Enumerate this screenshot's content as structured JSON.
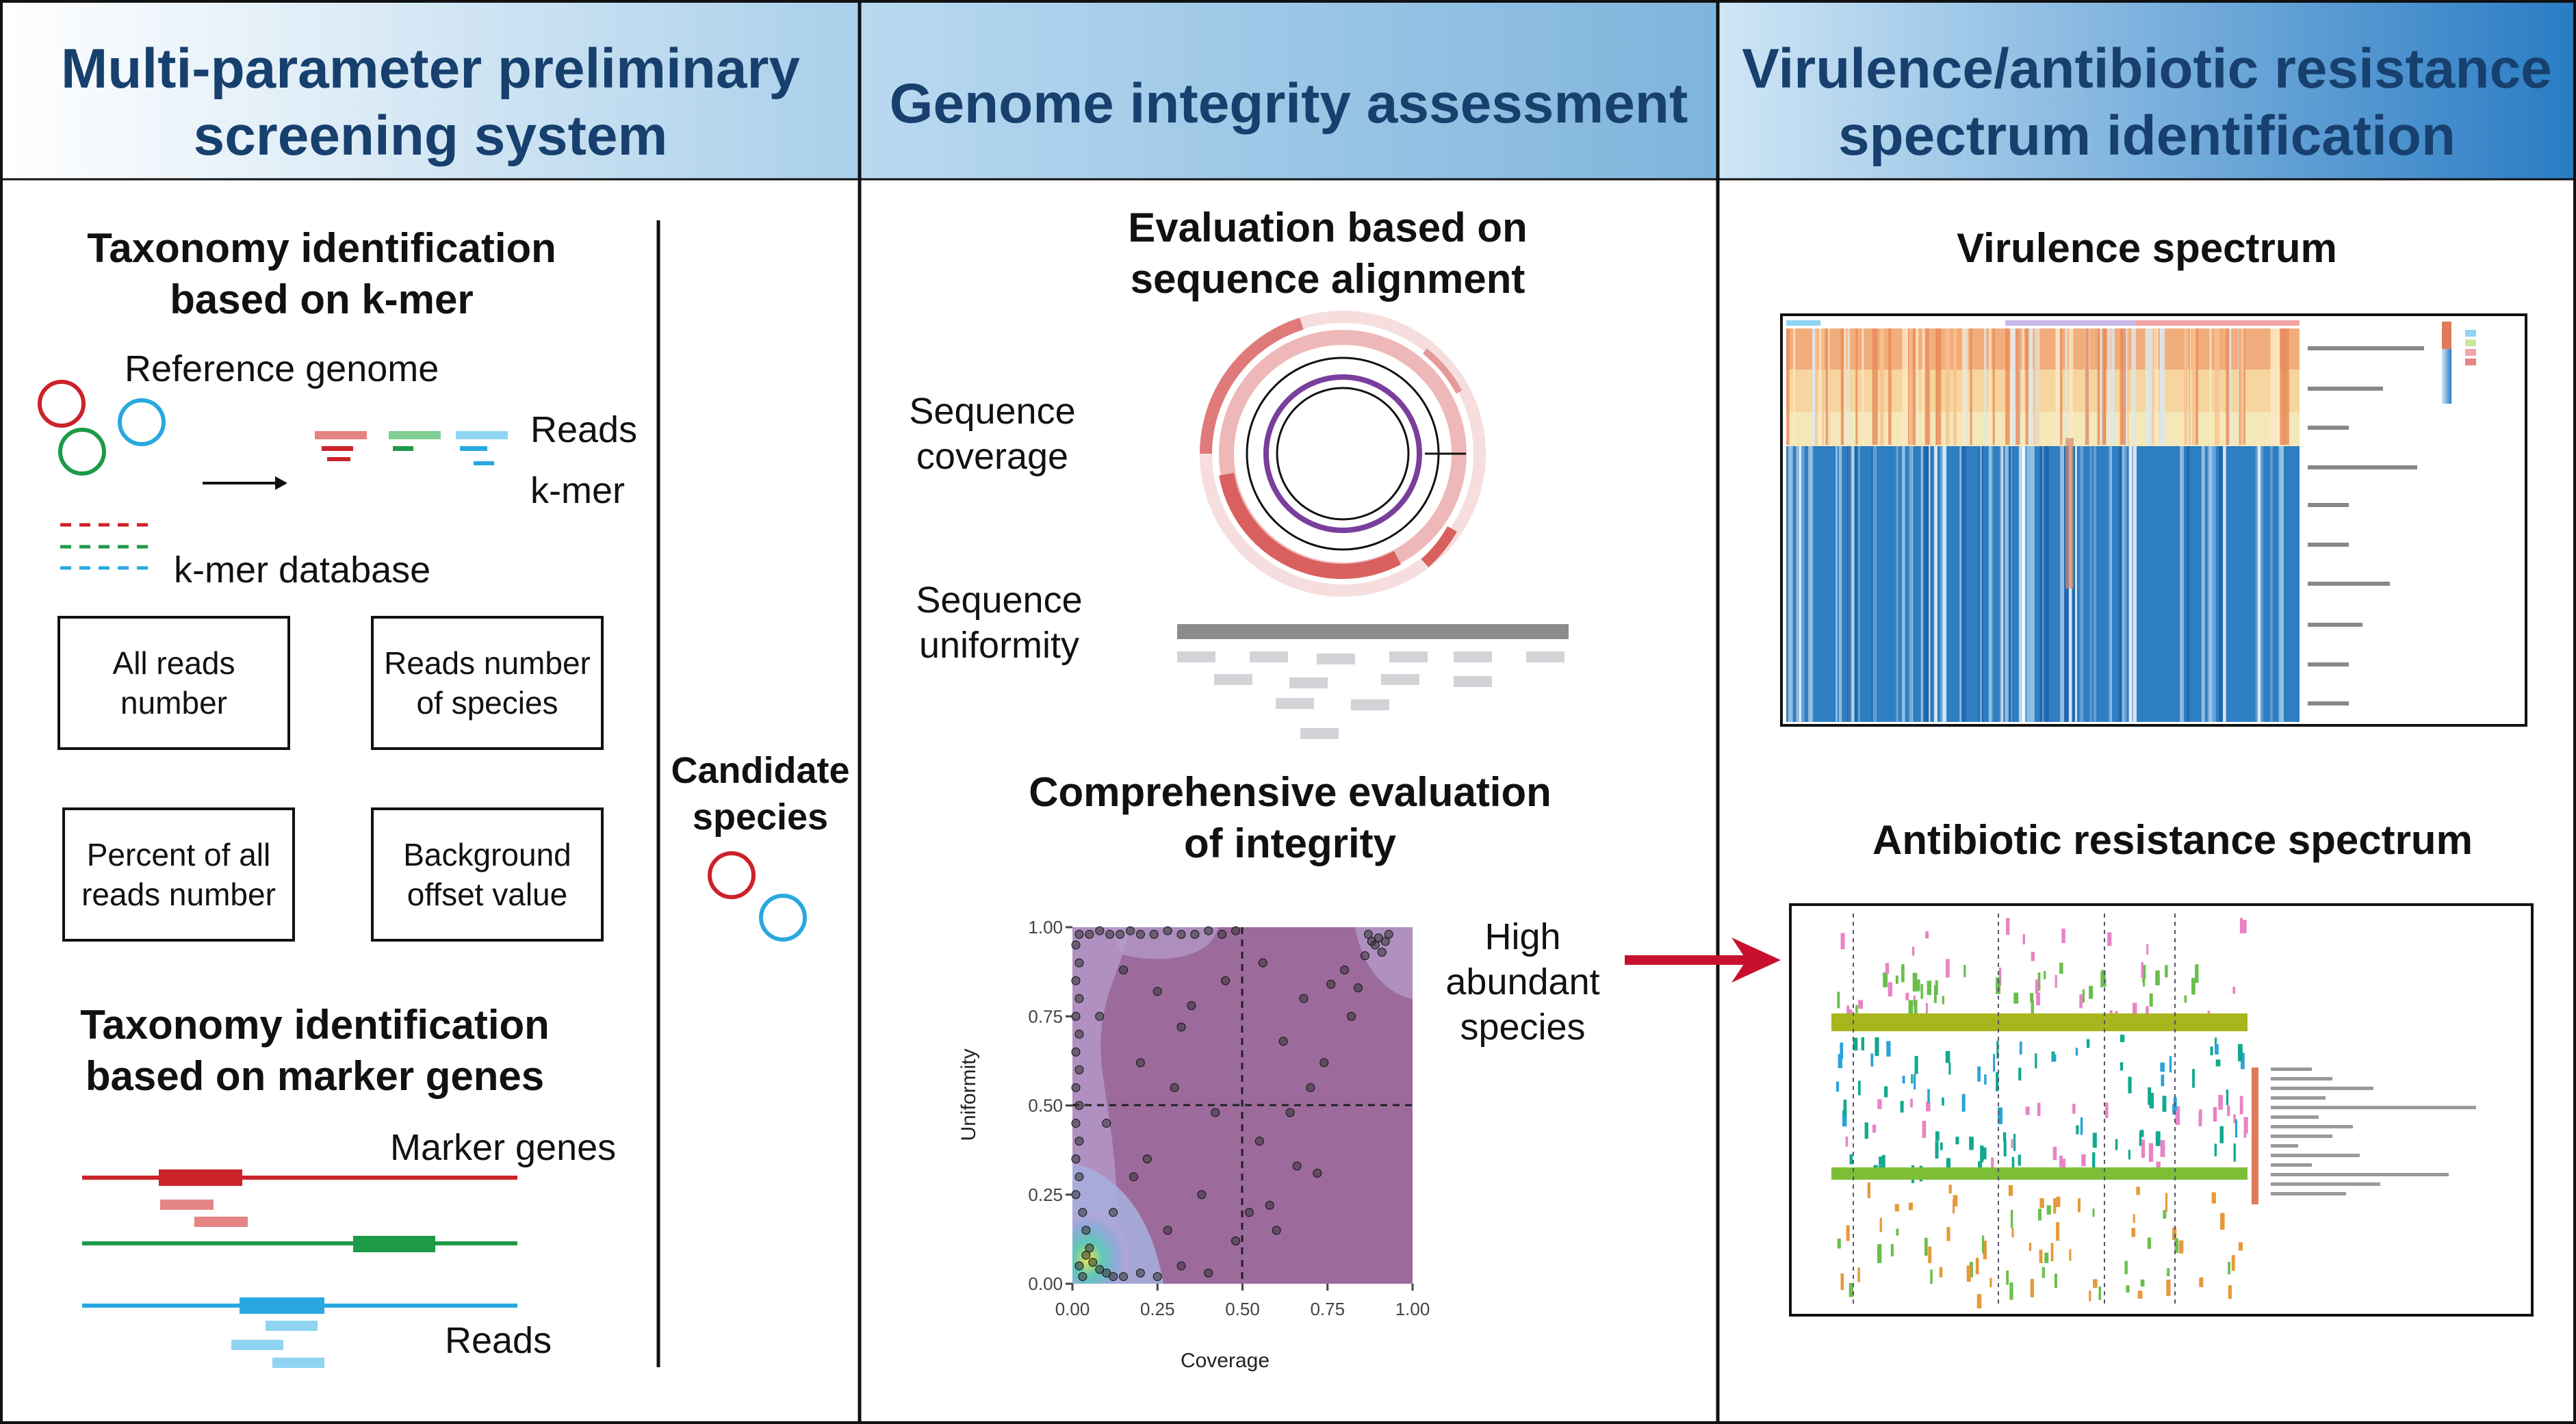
{
  "panels": [
    {
      "header": "Multi-parameter preliminary\nscreening system",
      "taxonomy_kmer": {
        "title": "Taxonomy identification\nbased on k-mer",
        "reference_genome": "Reference genome",
        "reads": "Reads",
        "kmer": "k-mer",
        "kmer_database": "k-mer database"
      },
      "metric_boxes": [
        "All reads\nnumber",
        "Reads number\nof species",
        "Percent of all\nreads number",
        "Background\noffset value"
      ],
      "taxonomy_marker": {
        "title": "Taxonomy identification\nbased on marker genes",
        "marker_genes": "Marker genes",
        "reads": "Reads"
      },
      "candidate_species": "Candidate\nspecies"
    },
    {
      "header": "Genome integrity assessment",
      "alignment": {
        "title": "Evaluation based on\nsequence alignment",
        "coverage_label": "Sequence\ncoverage",
        "uniformity_label": "Sequence\nuniformity"
      },
      "comprehensive": {
        "title": "Comprehensive evaluation\nof integrity",
        "high_abundant": "High\nabundant\nspecies"
      }
    },
    {
      "header": "Virulence/antibiotic resistance\nspectrum identification",
      "virulence_title": "Virulence spectrum",
      "resistance_title": "Antibiotic resistance spectrum"
    }
  ],
  "colors": {
    "red": "#cc2229",
    "green": "#1d9a48",
    "blue": "#29a8e0",
    "header_text": "#17406e",
    "arrow": "#c8102e",
    "plot_bg": "#9c6b9c"
  },
  "chart_data": {
    "type": "scatter",
    "xlabel": "Coverage",
    "ylabel": "Uniformity",
    "xlim": [
      0,
      1
    ],
    "ylim": [
      0,
      1
    ],
    "x_ticks": [
      "0.00",
      "0.25",
      "0.50",
      "0.75",
      "1.00"
    ],
    "y_ticks": [
      "0.00",
      "0.25",
      "0.50",
      "0.75",
      "1.00"
    ],
    "reference_lines": {
      "x": 0.5,
      "y": 0.5
    },
    "points": [
      [
        0.02,
        0.98
      ],
      [
        0.05,
        0.98
      ],
      [
        0.08,
        0.99
      ],
      [
        0.11,
        0.98
      ],
      [
        0.14,
        0.98
      ],
      [
        0.17,
        0.99
      ],
      [
        0.2,
        0.98
      ],
      [
        0.24,
        0.98
      ],
      [
        0.28,
        0.99
      ],
      [
        0.32,
        0.98
      ],
      [
        0.36,
        0.98
      ],
      [
        0.4,
        0.99
      ],
      [
        0.44,
        0.98
      ],
      [
        0.48,
        0.99
      ],
      [
        0.87,
        0.98
      ],
      [
        0.88,
        0.96
      ],
      [
        0.89,
        0.95
      ],
      [
        0.9,
        0.97
      ],
      [
        0.91,
        0.93
      ],
      [
        0.92,
        0.96
      ],
      [
        0.93,
        0.98
      ],
      [
        0.86,
        0.92
      ],
      [
        0.01,
        0.95
      ],
      [
        0.02,
        0.9
      ],
      [
        0.01,
        0.85
      ],
      [
        0.02,
        0.8
      ],
      [
        0.01,
        0.75
      ],
      [
        0.02,
        0.7
      ],
      [
        0.01,
        0.65
      ],
      [
        0.02,
        0.6
      ],
      [
        0.01,
        0.55
      ],
      [
        0.02,
        0.5
      ],
      [
        0.01,
        0.45
      ],
      [
        0.02,
        0.4
      ],
      [
        0.01,
        0.35
      ],
      [
        0.02,
        0.3
      ],
      [
        0.01,
        0.25
      ],
      [
        0.03,
        0.2
      ],
      [
        0.04,
        0.15
      ],
      [
        0.05,
        0.1
      ],
      [
        0.06,
        0.06
      ],
      [
        0.08,
        0.04
      ],
      [
        0.1,
        0.03
      ],
      [
        0.12,
        0.02
      ],
      [
        0.03,
        0.02
      ],
      [
        0.02,
        0.05
      ],
      [
        0.04,
        0.08
      ],
      [
        0.15,
        0.02
      ],
      [
        0.2,
        0.03
      ],
      [
        0.25,
        0.02
      ],
      [
        0.32,
        0.05
      ],
      [
        0.4,
        0.03
      ],
      [
        0.08,
        0.75
      ],
      [
        0.1,
        0.45
      ],
      [
        0.12,
        0.2
      ],
      [
        0.15,
        0.88
      ],
      [
        0.18,
        0.3
      ],
      [
        0.2,
        0.62
      ],
      [
        0.22,
        0.35
      ],
      [
        0.25,
        0.82
      ],
      [
        0.28,
        0.15
      ],
      [
        0.3,
        0.55
      ],
      [
        0.32,
        0.72
      ],
      [
        0.35,
        0.78
      ],
      [
        0.38,
        0.25
      ],
      [
        0.42,
        0.48
      ],
      [
        0.45,
        0.85
      ],
      [
        0.48,
        0.12
      ],
      [
        0.55,
        0.4
      ],
      [
        0.58,
        0.22
      ],
      [
        0.62,
        0.68
      ],
      [
        0.66,
        0.33
      ],
      [
        0.7,
        0.55
      ],
      [
        0.72,
        0.31
      ],
      [
        0.76,
        0.84
      ],
      [
        0.8,
        0.88
      ],
      [
        0.82,
        0.75
      ],
      [
        0.84,
        0.83
      ],
      [
        0.6,
        0.15
      ],
      [
        0.68,
        0.8
      ],
      [
        0.74,
        0.62
      ],
      [
        0.64,
        0.48
      ],
      [
        0.56,
        0.9
      ],
      [
        0.52,
        0.2
      ]
    ]
  }
}
